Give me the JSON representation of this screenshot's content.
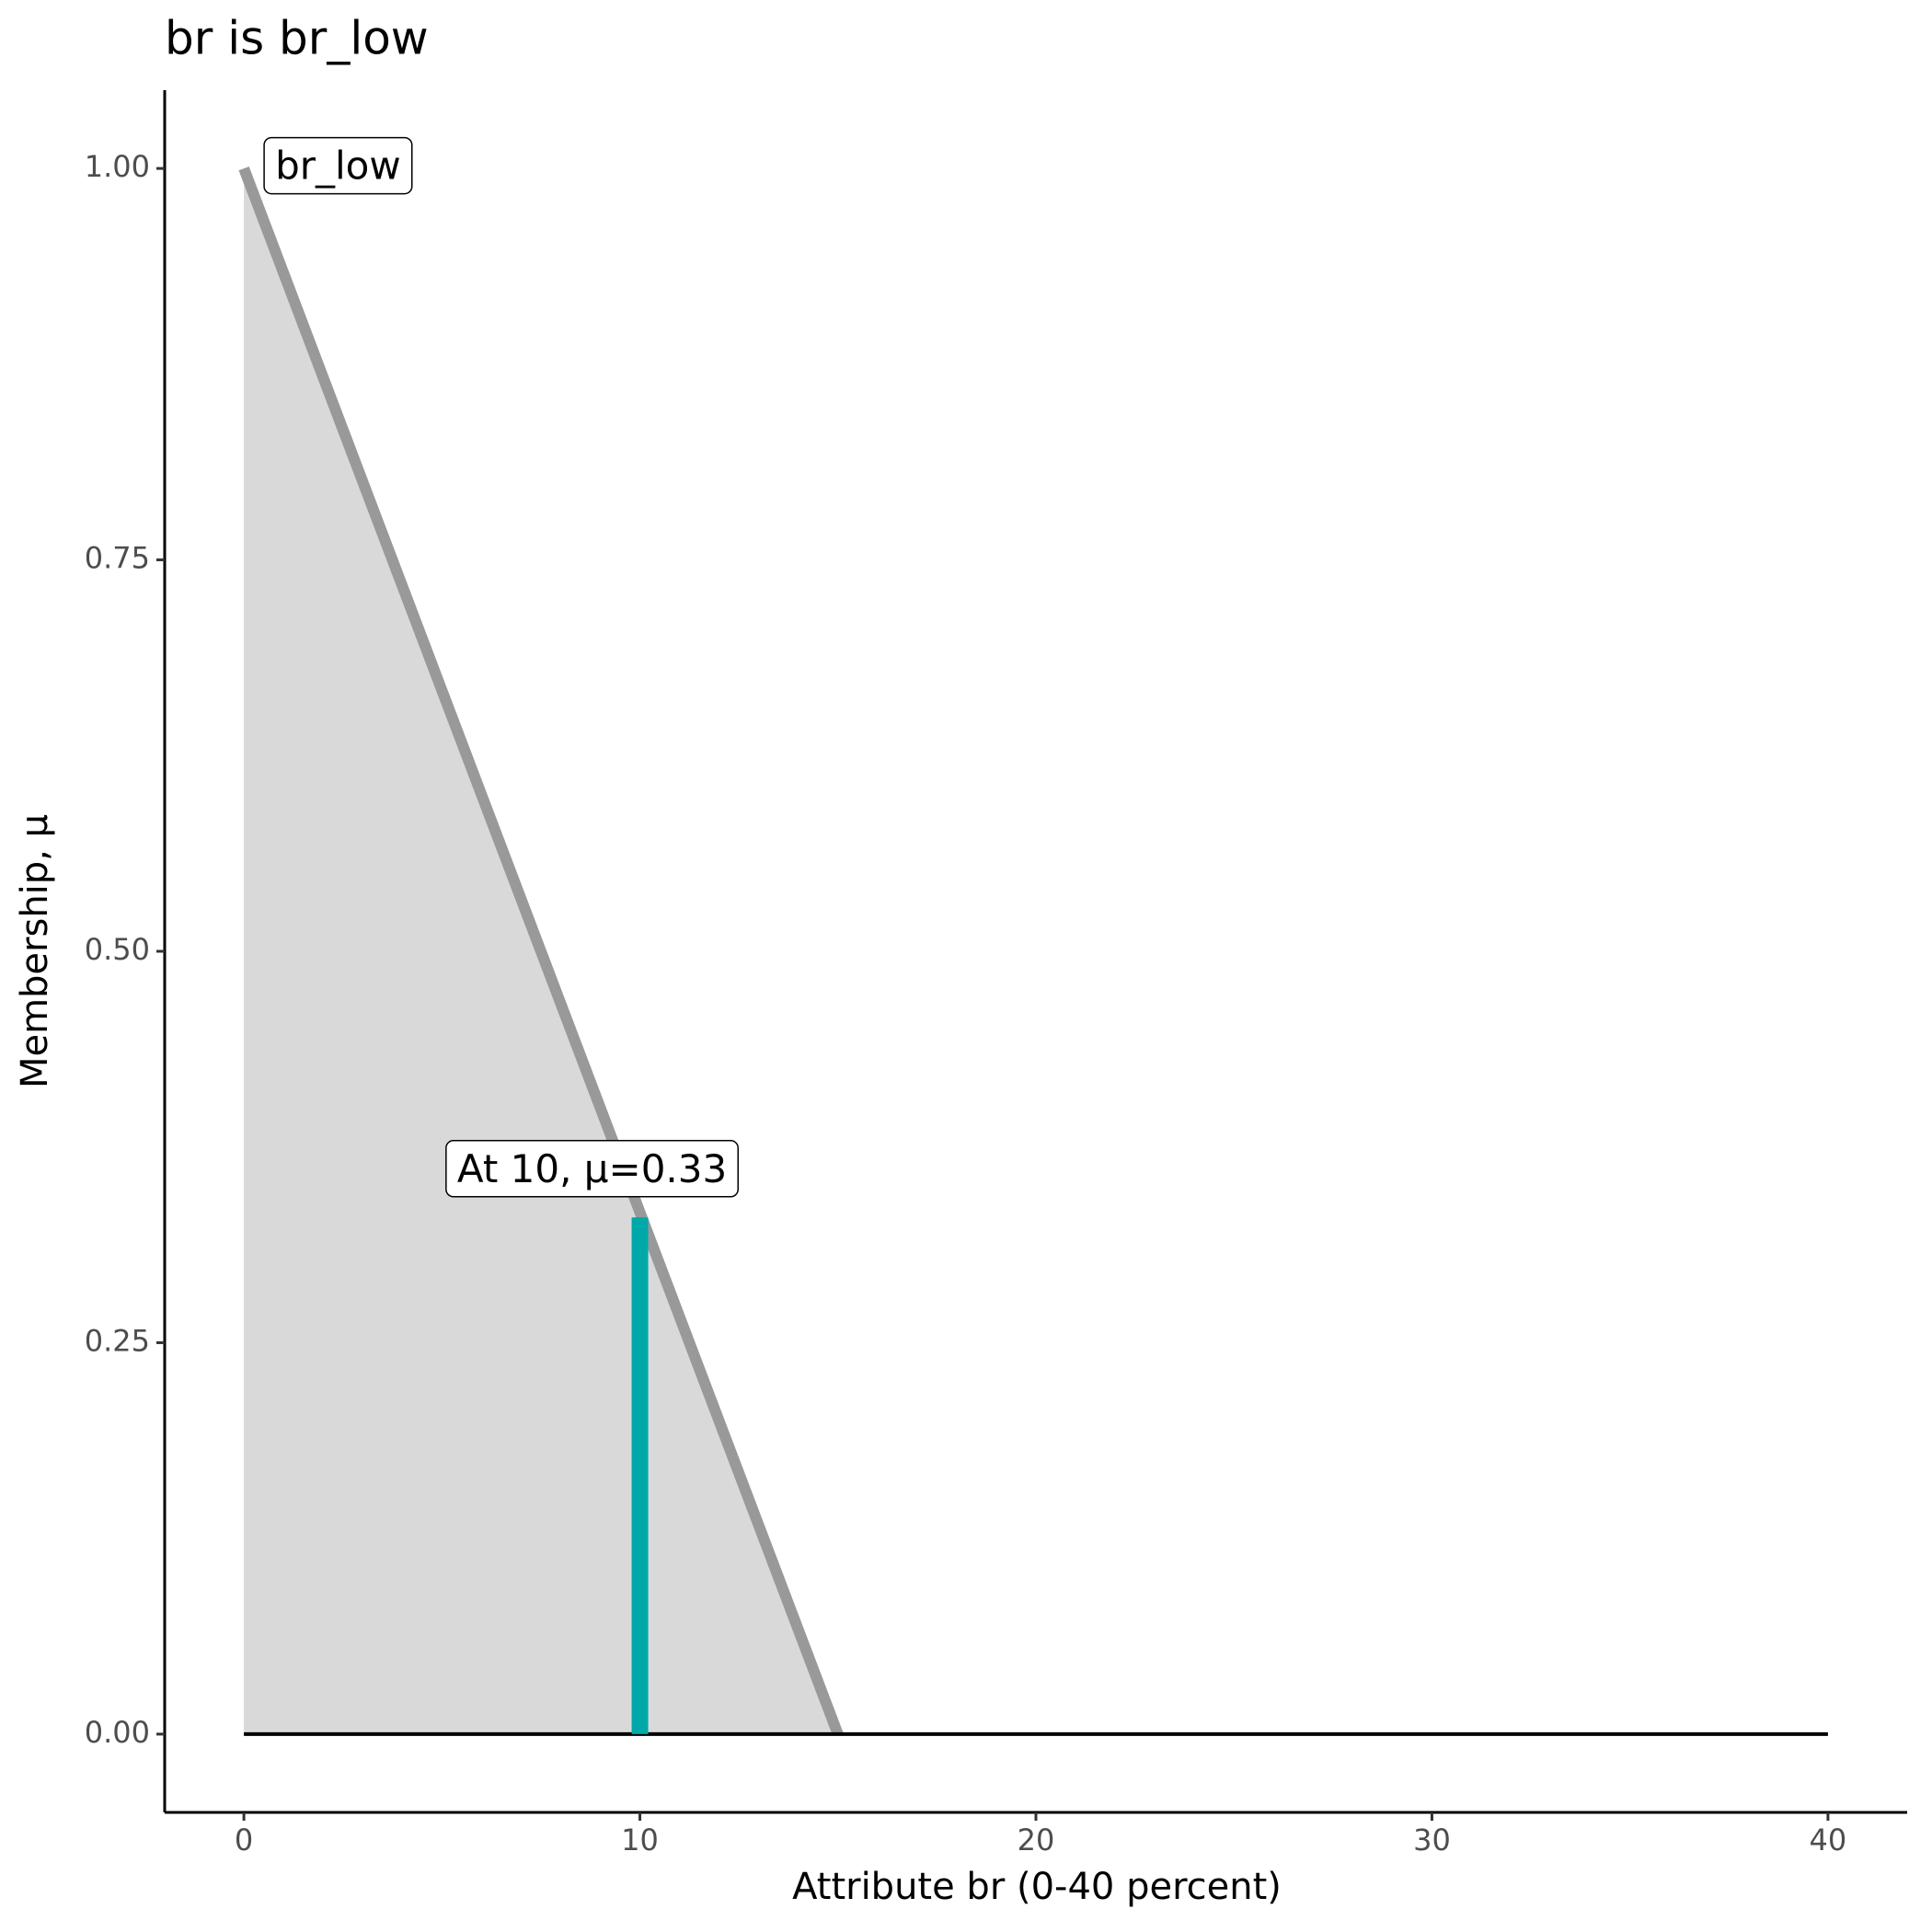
{
  "chart_data": {
    "type": "line",
    "title": "br is br_low",
    "x_label": "Attribute br (0-40 percent)",
    "y_label": "Membership, μ",
    "series": [
      {
        "color": "#999999",
        "fill": "#d9d9d9",
        "x": [
          0,
          15
        ],
        "values": [
          1,
          0
        ]
      },
      {
        "color": "#000000",
        "x": [
          0,
          40
        ],
        "values": [
          0,
          0
        ]
      }
    ],
    "marker": {
      "x": 10,
      "value": 0.33,
      "color": "#00a9a9"
    },
    "annotations": [
      "br_low",
      "At 10, μ=0.33"
    ],
    "xlim": [
      -2,
      42
    ],
    "xticks": [
      0,
      10,
      20,
      30,
      40
    ],
    "ylim": [
      -0.05,
      1.05
    ],
    "yticks": [
      {
        "value": 0,
        "label": "0.00"
      },
      {
        "value": 0.25,
        "label": "0.25"
      },
      {
        "value": 0.5,
        "label": "0.50"
      },
      {
        "value": 0.75,
        "label": "0.75"
      },
      {
        "value": 1,
        "label": "1.00"
      }
    ],
    "grid": false
  }
}
